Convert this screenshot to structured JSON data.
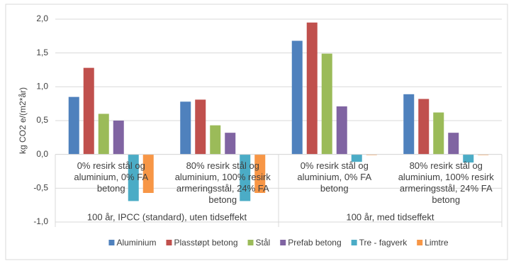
{
  "chart_data": {
    "type": "bar",
    "y_label": "kg CO2 e/(m2*år)",
    "categories": [
      "0% resirk stål og aluminium, 0% FA betong",
      "80% resirk stål og aluminium, 100% resirk armeringsstål, 24% FA betong",
      "0% resirk stål og aluminium, 0% FA betong",
      "80% resirk stål og aluminium, 100% resirk armeringsstål, 24% FA betong"
    ],
    "category_groups": [
      "100 år, IPCC (standard), uten tidseffekt",
      "100 år, med tidseffekt"
    ],
    "series": [
      {
        "name": "Aluminium",
        "color": "#4f81bd",
        "values": [
          0.85,
          0.78,
          1.68,
          0.89
        ]
      },
      {
        "name": "Plasstøpt betong",
        "color": "#c0504d",
        "values": [
          1.28,
          0.81,
          1.95,
          0.82
        ]
      },
      {
        "name": "Stål",
        "color": "#9bbb59",
        "values": [
          0.6,
          0.43,
          1.49,
          0.62
        ]
      },
      {
        "name": "Prefab betong",
        "color": "#8064a2",
        "values": [
          0.5,
          0.32,
          0.71,
          0.32
        ]
      },
      {
        "name": "Tre - fagverk",
        "color": "#4bacc6",
        "values": [
          -0.69,
          -0.69,
          -0.11,
          -0.12
        ]
      },
      {
        "name": "Limtre",
        "color": "#f79646",
        "values": [
          -0.57,
          -0.57,
          -0.01,
          -0.01
        ]
      }
    ],
    "ylim": [
      -1.0,
      2.0
    ],
    "yticks": [
      {
        "value": -1.0,
        "label": "-1,0"
      },
      {
        "value": -0.5,
        "label": "-0,5"
      },
      {
        "value": 0,
        "label": "0,0"
      },
      {
        "value": 0.5,
        "label": "0,5"
      },
      {
        "value": 1.0,
        "label": "1,0"
      },
      {
        "value": 1.5,
        "label": "1,5"
      },
      {
        "value": 2.0,
        "label": "2,0"
      }
    ],
    "grid": true,
    "legend": "bottom"
  }
}
